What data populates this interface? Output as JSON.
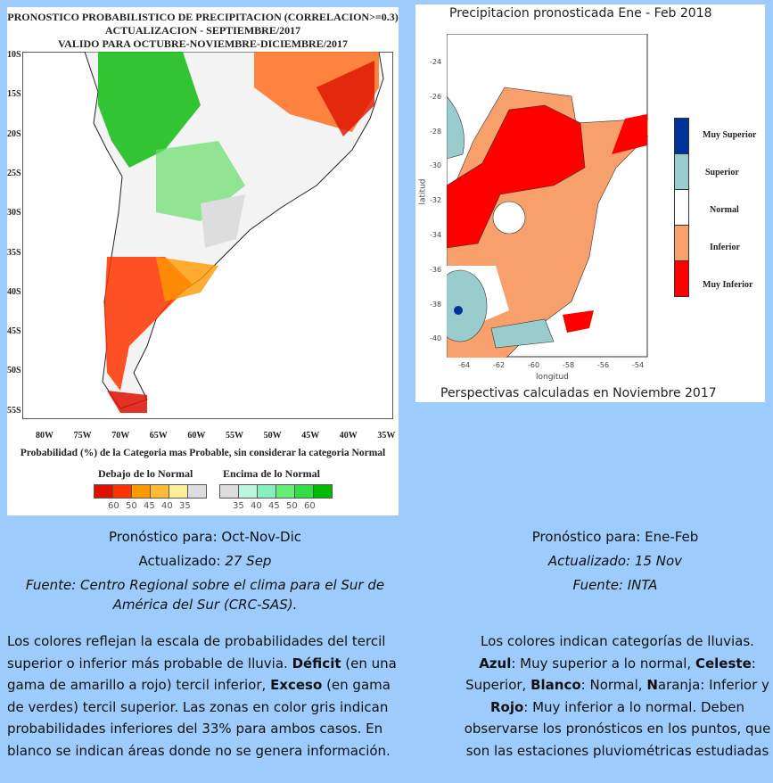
{
  "left_map": {
    "title_lines": [
      "PRONOSTICO PROBABILISTICO DE PRECIPITACION (CORRELACION>=0.3)",
      "ACTUALIZACION - SEPTIEMBRE/2017",
      "VALIDO PARA OCTUBRE-NOVIEMBRE-DICIEMBRE/2017"
    ],
    "lat_labels": [
      "10S",
      "15S",
      "20S",
      "25S",
      "30S",
      "35S",
      "40S",
      "45S",
      "50S",
      "55S"
    ],
    "lon_labels": [
      "80W",
      "75W",
      "70W",
      "65W",
      "60W",
      "55W",
      "50W",
      "45W",
      "40W",
      "35W"
    ],
    "caption": "Probabilidad (%) de la Categoria mas Probable, sin considerar la categoria Normal",
    "below_title": "Debajo de lo Normal",
    "above_title": "Encima de lo Normal",
    "below_colors": [
      "#dd1100",
      "#ff3300",
      "#ff9900",
      "#ffbb33",
      "#ffee99",
      "#dddddd"
    ],
    "above_colors": [
      "#dddddd",
      "#bbf5dd",
      "#88eebb",
      "#66ee77",
      "#33dd44",
      "#00bb00"
    ],
    "below_ticks": [
      "60",
      "50",
      "45",
      "40",
      "35"
    ],
    "above_ticks": [
      "35",
      "40",
      "45",
      "50",
      "60"
    ]
  },
  "right_map": {
    "title": "Precipitacion pronosticada Ene - Feb 2018",
    "footer": "Perspectivas calculadas en Noviembre 2017",
    "xlabel": "longitud",
    "ylabel": "latitud",
    "lat_ticks": [
      "-24",
      "-26",
      "-28",
      "-30",
      "-32",
      "-34",
      "-36",
      "-38",
      "-40"
    ],
    "lon_ticks": [
      "-64",
      "-62",
      "-60",
      "-58",
      "-56",
      "-54"
    ],
    "legend": [
      {
        "label": "Muy Superior",
        "color": "#003399"
      },
      {
        "label": "Superior",
        "color": "#99cccc"
      },
      {
        "label": "Normal",
        "color": "#ffffff"
      },
      {
        "label": "Inferior",
        "color": "#f7a06c"
      },
      {
        "label": "Muy Inferior",
        "color": "#ff0000"
      }
    ]
  },
  "left_text": {
    "l1_label": "Pronóstico para:",
    "l1_value": "Oct-Nov-Dic",
    "l2_label": "Actualizado:",
    "l2_value": "27  Sep",
    "source": "Fuente: Centro Regional sobre el clima para el Sur de América del Sur (CRC-SAS).",
    "p_a": "Los colores reflejan la escala de probabilidades del tercil superior o inferior más probable de lluvia. ",
    "p_b": "Déficit",
    "p_c": " (en una gama de amarillo a rojo) tercil inferior, ",
    "p_d": "Exceso",
    "p_e": " (en gama de verdes) tercil superior. Las zonas en color gris indican probabilidades inferiores del 33% para ambos casos. En blanco se indican áreas donde no se genera información."
  },
  "right_text": {
    "l1": "Pronóstico para: Ene-Feb",
    "l2": "Actualizado:  15 Nov",
    "l3": "Fuente: INTA",
    "p1": "Los colores indican categorías de lluvias.",
    "b1": "Azul",
    "t1": ": Muy superior a lo normal, ",
    "b2": "Celeste",
    "t2": ": Superior, ",
    "b3": "Blanco",
    "t3": ": Normal, ",
    "b4": "N",
    "t4": "aranja: Inferior y ",
    "b5": "Rojo",
    "t5": ": Muy inferior a lo normal.  Deben observarse los pronósticos en los puntos, que son las estaciones pluviométricas estudiadas"
  }
}
